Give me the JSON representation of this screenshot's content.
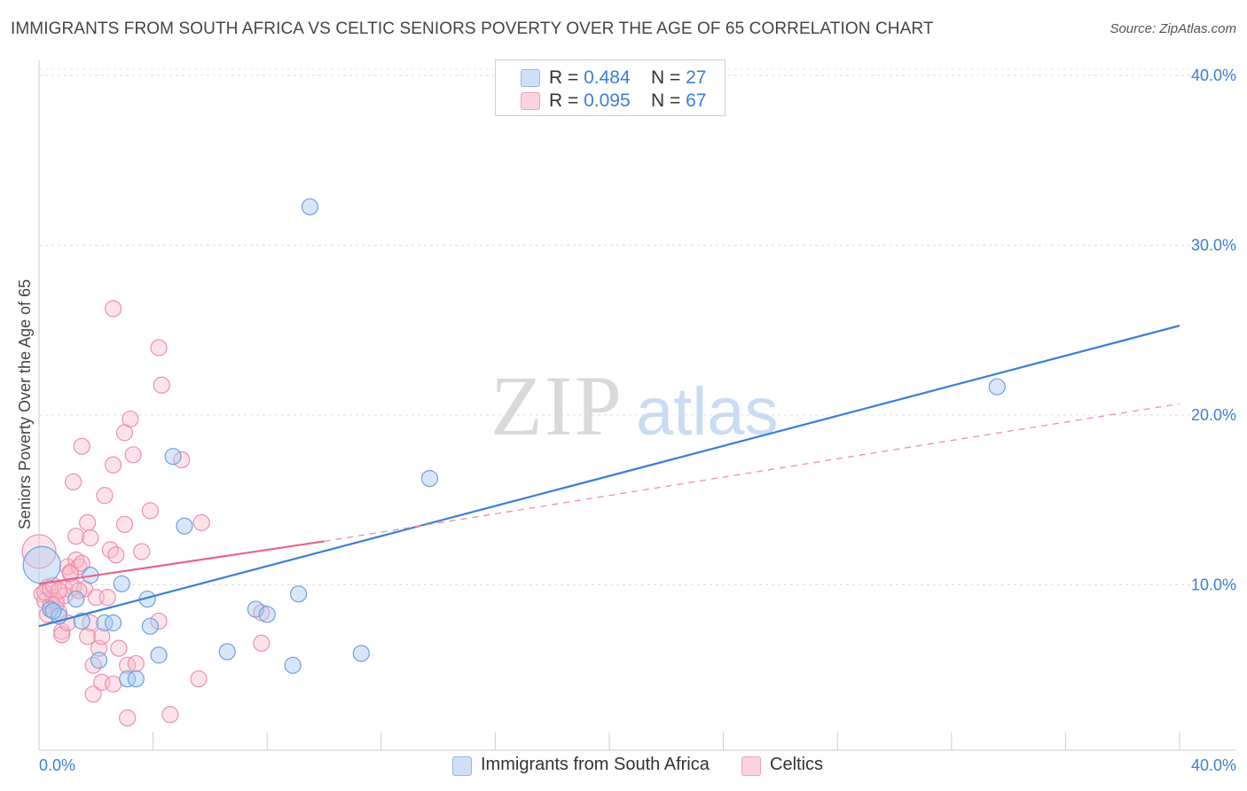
{
  "title": "IMMIGRANTS FROM SOUTH AFRICA VS CELTIC SENIORS POVERTY OVER THE AGE OF 65 CORRELATION CHART",
  "source": "Source: ZipAtlas.com",
  "watermark": {
    "zip": "ZIP",
    "atlas": "atlas"
  },
  "legend": {
    "rows": [
      {
        "r_label": "R = ",
        "r_value": "0.484",
        "n_label": "N = ",
        "n_value": "27",
        "color": "#a9c9f0"
      },
      {
        "r_label": "R = ",
        "r_value": "0.095",
        "n_label": "N = ",
        "n_value": "67",
        "color": "#f7b8cb"
      }
    ]
  },
  "bottom_legend": [
    {
      "label": "Immigrants from South Africa",
      "color": "#a9c9f0"
    },
    {
      "label": "Celtics",
      "color": "#f7b8cb"
    }
  ],
  "chart_data": {
    "type": "scatter",
    "title": "IMMIGRANTS FROM SOUTH AFRICA VS CELTIC SENIORS POVERTY OVER THE AGE OF 65 CORRELATION CHART",
    "xlabel": "",
    "ylabel": "Seniors Poverty Over the Age of 65",
    "xlim": [
      0,
      40
    ],
    "ylim": [
      0,
      40
    ],
    "x_tick_labels": [
      "0.0%",
      "40.0%"
    ],
    "y_tick_labels": [
      "10.0%",
      "20.0%",
      "30.0%",
      "40.0%"
    ],
    "y_ticks": [
      10,
      20,
      30,
      40
    ],
    "grid": true,
    "legend_position": "top-center",
    "series": [
      {
        "name": "Immigrants from South Africa",
        "color": "#3a7fd5",
        "fill": "#a9c9f0",
        "points": [
          [
            0.1,
            10.9
          ],
          [
            0.4,
            8.3
          ],
          [
            0.7,
            7.9
          ],
          [
            1.3,
            8.9
          ],
          [
            1.5,
            7.6
          ],
          [
            1.8,
            10.3
          ],
          [
            2.1,
            5.3
          ],
          [
            2.3,
            7.5
          ],
          [
            2.6,
            7.5
          ],
          [
            2.9,
            9.8
          ],
          [
            3.1,
            4.2
          ],
          [
            3.4,
            4.2
          ],
          [
            3.8,
            8.9
          ],
          [
            3.9,
            7.3
          ],
          [
            4.2,
            5.6
          ],
          [
            4.7,
            17.3
          ],
          [
            5.1,
            13.2
          ],
          [
            6.6,
            5.8
          ],
          [
            7.6,
            8.3
          ],
          [
            8.0,
            8.0
          ],
          [
            8.9,
            5.0
          ],
          [
            9.1,
            9.2
          ],
          [
            9.5,
            32.0
          ],
          [
            11.3,
            5.7
          ],
          [
            13.7,
            16.0
          ],
          [
            33.6,
            21.4
          ],
          [
            0.5,
            8.2
          ]
        ],
        "trend": {
          "x": [
            0,
            40
          ],
          "y": [
            7.3,
            25.0
          ],
          "style": "solid"
        }
      },
      {
        "name": "Celtics",
        "color": "#e8628a",
        "fill": "#f7b8cb",
        "points": [
          [
            0.0,
            11.7
          ],
          [
            0.1,
            9.2
          ],
          [
            0.2,
            8.8
          ],
          [
            0.3,
            9.6
          ],
          [
            0.4,
            8.5
          ],
          [
            0.5,
            9.0
          ],
          [
            0.6,
            8.8
          ],
          [
            0.7,
            8.1
          ],
          [
            0.8,
            7.0
          ],
          [
            0.8,
            6.8
          ],
          [
            0.9,
            9.5
          ],
          [
            1.0,
            10.8
          ],
          [
            1.0,
            7.5
          ],
          [
            1.1,
            10.5
          ],
          [
            1.2,
            9.6
          ],
          [
            1.2,
            15.8
          ],
          [
            1.3,
            12.6
          ],
          [
            1.3,
            11.2
          ],
          [
            1.4,
            10.8
          ],
          [
            1.5,
            17.9
          ],
          [
            1.5,
            11.0
          ],
          [
            1.6,
            9.5
          ],
          [
            1.7,
            6.7
          ],
          [
            1.7,
            13.4
          ],
          [
            1.8,
            7.5
          ],
          [
            1.8,
            12.5
          ],
          [
            1.9,
            5.0
          ],
          [
            1.9,
            3.3
          ],
          [
            2.0,
            9.0
          ],
          [
            2.1,
            6.0
          ],
          [
            2.2,
            4.0
          ],
          [
            2.2,
            6.7
          ],
          [
            2.3,
            15.0
          ],
          [
            2.4,
            9.0
          ],
          [
            2.5,
            11.8
          ],
          [
            2.6,
            26.0
          ],
          [
            2.6,
            16.8
          ],
          [
            2.6,
            3.9
          ],
          [
            2.7,
            11.5
          ],
          [
            2.8,
            6.0
          ],
          [
            3.0,
            18.7
          ],
          [
            3.0,
            13.3
          ],
          [
            3.1,
            5.0
          ],
          [
            3.1,
            1.9
          ],
          [
            3.2,
            19.5
          ],
          [
            3.3,
            17.4
          ],
          [
            3.4,
            5.1
          ],
          [
            3.6,
            11.7
          ],
          [
            3.9,
            14.1
          ],
          [
            4.2,
            7.6
          ],
          [
            4.2,
            23.7
          ],
          [
            4.3,
            21.5
          ],
          [
            4.6,
            2.1
          ],
          [
            5.0,
            17.1
          ],
          [
            5.6,
            4.2
          ],
          [
            5.7,
            13.4
          ],
          [
            7.8,
            6.3
          ],
          [
            7.8,
            8.1
          ],
          [
            0.2,
            9.3
          ],
          [
            0.4,
            9.5
          ],
          [
            0.6,
            8.6
          ],
          [
            0.9,
            9.1
          ],
          [
            1.1,
            10.4
          ],
          [
            1.4,
            9.4
          ],
          [
            0.3,
            8.0
          ],
          [
            0.5,
            9.7
          ],
          [
            0.7,
            9.4
          ]
        ],
        "trend": {
          "x": [
            0,
            10
          ],
          "y": [
            9.8,
            12.3
          ],
          "style": "solid",
          "extension": {
            "x": [
              10,
              40
            ],
            "y": [
              12.3,
              20.4
            ],
            "style": "dashed"
          }
        }
      }
    ]
  }
}
